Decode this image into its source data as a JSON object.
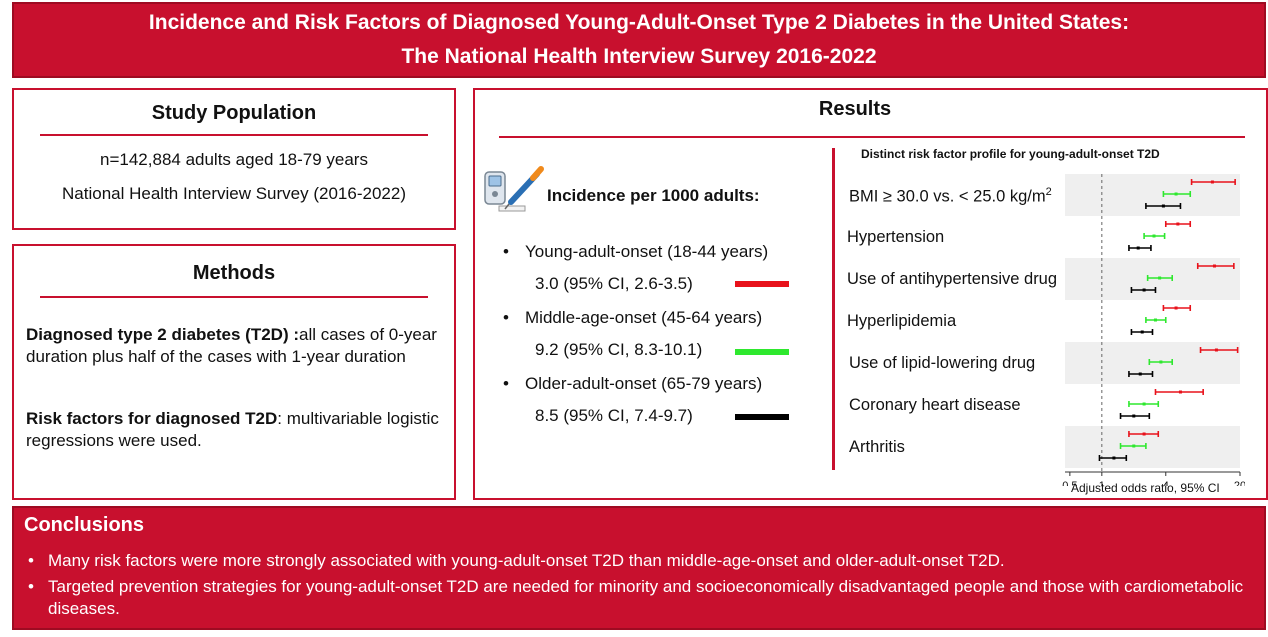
{
  "title": {
    "line1": "Incidence and Risk Factors of Diagnosed Young-Adult-Onset Type 2 Diabetes in the United States:",
    "line2": "The National Health Interview Survey 2016-2022"
  },
  "study_population": {
    "heading": "Study Population",
    "line1": "n=142,884 adults aged 18-79 years",
    "line2": "National Health Interview Survey (2016-2022)"
  },
  "methods": {
    "heading": "Methods",
    "p1_bold": "Diagnosed type 2 diabetes (T2D) :",
    "p1_text": "all cases of 0-year duration plus half of the cases with 1-year duration",
    "p2_bold": "Risk factors for diagnosed T2D",
    "p2_text": ": multivariable logistic regressions were used."
  },
  "results": {
    "heading": "Results",
    "incidence_title": "Incidence per 1000 adults:",
    "incidence": [
      {
        "group": "Young-adult-onset (18-44 years)",
        "value": "3.0 (95% CI, 2.6-3.5)",
        "color": "#e8121b"
      },
      {
        "group": "Middle-age-onset (45-64 years)",
        "value": "9.2 (95% CI, 8.3-10.1)",
        "color": "#2ee82e"
      },
      {
        "group": "Older-adult-onset (65-79 years)",
        "value": "8.5 (95% CI, 7.4-9.7)",
        "color": "#000000"
      }
    ],
    "bullet": "•",
    "icon": "glucose-meter-and-insulin-pen-icon"
  },
  "chart_data": {
    "type": "forest",
    "title": "Distinct risk factor profile for young-adult-onset T2D",
    "xlabel": "Adjusted odds ratio, 95% CI",
    "xscale": "log",
    "xlim": [
      0.45,
      20
    ],
    "xticks": [
      0.5,
      1,
      4,
      20
    ],
    "xtick_labels": [
      "0.5",
      "1",
      "4",
      "20"
    ],
    "reference_line": 1,
    "series": [
      {
        "name": "Young-adult-onset",
        "color": "#e8121b"
      },
      {
        "name": "Middle-age-onset",
        "color": "#2ee82e"
      },
      {
        "name": "Older-adult-onset",
        "color": "#000000"
      }
    ],
    "factors": [
      {
        "label": "BMI ≥ 30.0 vs. < 25.0 kg/m",
        "sup": "2",
        "estimates": [
          [
            11.0,
            7.0,
            18.0
          ],
          [
            5.0,
            3.8,
            6.8
          ],
          [
            3.8,
            2.6,
            5.5
          ]
        ]
      },
      {
        "label": "Hypertension",
        "sup": "",
        "estimates": [
          [
            5.2,
            4.0,
            6.8
          ],
          [
            3.1,
            2.5,
            3.9
          ],
          [
            2.2,
            1.8,
            2.9
          ]
        ]
      },
      {
        "label": "Use of antihypertensive drug",
        "sup": "",
        "estimates": [
          [
            11.5,
            8.0,
            17.5
          ],
          [
            3.5,
            2.7,
            4.6
          ],
          [
            2.5,
            1.9,
            3.2
          ]
        ]
      },
      {
        "label": "Hyperlipidemia",
        "sup": "",
        "estimates": [
          [
            5.0,
            3.8,
            6.8
          ],
          [
            3.2,
            2.6,
            4.0
          ],
          [
            2.4,
            1.9,
            3.0
          ]
        ]
      },
      {
        "label": "Use of lipid-lowering drug",
        "sup": "",
        "estimates": [
          [
            12.0,
            8.5,
            19.0
          ],
          [
            3.6,
            2.8,
            4.6
          ],
          [
            2.3,
            1.8,
            3.0
          ]
        ]
      },
      {
        "label": "Coronary heart disease",
        "sup": "",
        "estimates": [
          [
            5.5,
            3.2,
            9.0
          ],
          [
            2.5,
            1.8,
            3.4
          ],
          [
            2.0,
            1.5,
            2.8
          ]
        ]
      },
      {
        "label": "Arthritis",
        "sup": "",
        "estimates": [
          [
            2.5,
            1.8,
            3.4
          ],
          [
            2.0,
            1.5,
            2.6
          ],
          [
            1.3,
            0.95,
            1.7
          ]
        ]
      }
    ],
    "grid": false,
    "alternating_row_shading": true
  },
  "conclusions": {
    "heading": "Conclusions",
    "bullet": "•",
    "items": [
      "Many risk factors were more strongly associated with young-adult-onset T2D than middle-age-onset and older-adult-onset T2D.",
      "Targeted prevention strategies for young-adult-onset T2D are needed for minority and socioeconomically disadvantaged people and those with cardiometabolic diseases."
    ]
  }
}
